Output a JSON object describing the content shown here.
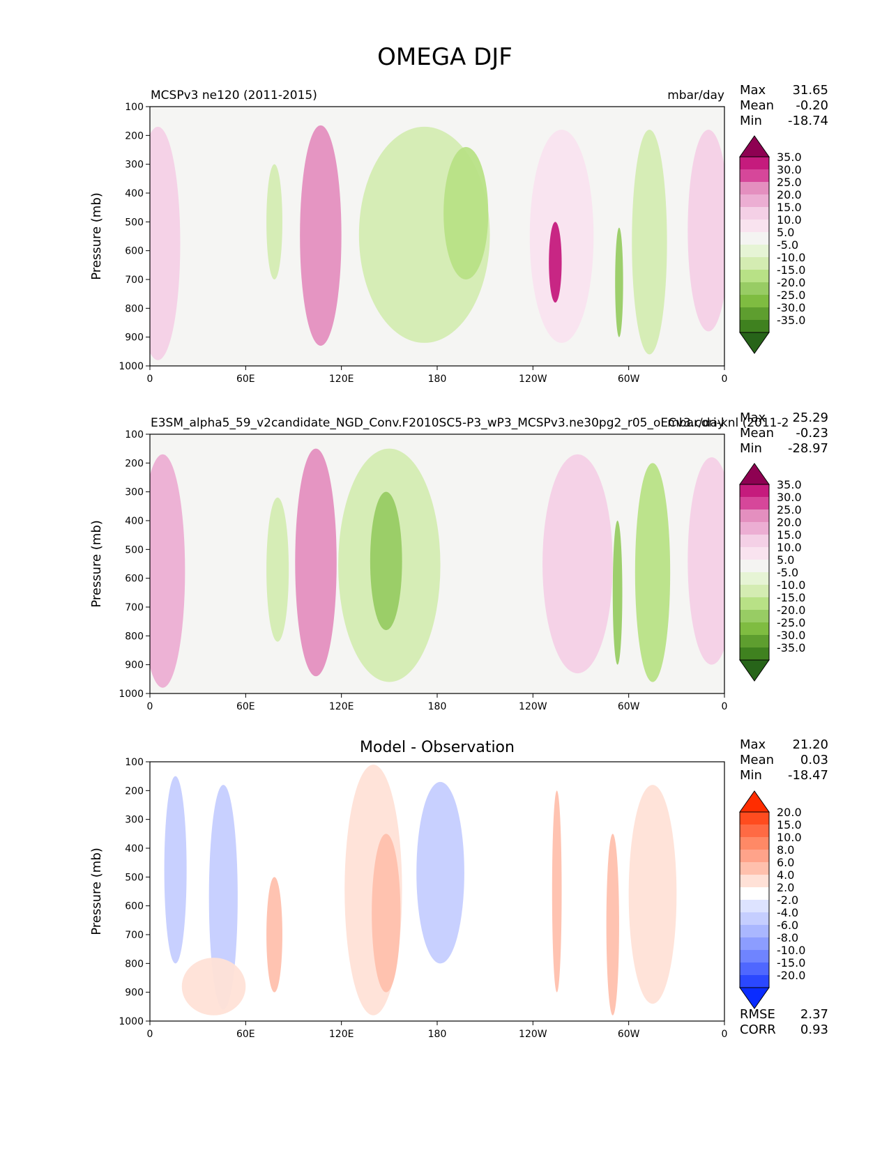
{
  "figure": {
    "title": "OMEGA DJF"
  },
  "colors": {
    "field_levels": [
      "#8e0152",
      "#c51b7d",
      "#d6479a",
      "#e48fbf",
      "#ecaed3",
      "#f4d0e6",
      "#f9e3ef",
      "#f4f4f2",
      "#e6f4d5",
      "#d4ecb2",
      "#b8e186",
      "#98cc64",
      "#7fbc41",
      "#5e9e2f",
      "#3f811f",
      "#276419"
    ],
    "field_background": "#f5f5f3",
    "diff_levels": [
      "#ff2d00",
      "#ff4c1f",
      "#ff6a44",
      "#ff8966",
      "#ffa38a",
      "#ffc0ad",
      "#ffe1d7",
      "#ffffff",
      "#dde3ff",
      "#c5ceff",
      "#aab7ff",
      "#8c9dff",
      "#6f84ff",
      "#4f67ff",
      "#2b48ff",
      "#0a2cff"
    ],
    "diff_background": "#ffffff"
  },
  "chart_data": [
    {
      "type": "heatmap",
      "title_left": "MCSPv3 ne120 (2011-2015)",
      "units": "mbar/day",
      "ylabel": "Pressure (mb)",
      "x_ticks": [
        "0",
        "60E",
        "120E",
        "180",
        "120W",
        "60W",
        "0"
      ],
      "y_ticks": [
        "100",
        "200",
        "300",
        "400",
        "500",
        "600",
        "700",
        "800",
        "900",
        "1000"
      ],
      "ylim": [
        1000,
        100
      ],
      "stats": [
        {
          "label": "Max",
          "value": "31.65"
        },
        {
          "label": "Mean",
          "value": "-0.20"
        },
        {
          "label": "Min",
          "value": "-18.74"
        }
      ],
      "colorbar_labels": [
        "35.0",
        "30.0",
        "25.0",
        "20.0",
        "15.0",
        "10.0",
        "5.0",
        "-5.0",
        "-10.0",
        "-15.0",
        "-20.0",
        "-25.0",
        "-30.0",
        "-35.0"
      ],
      "features": [
        {
          "lon": 5,
          "width": 28,
          "p_top": 170,
          "p_bot": 980,
          "value": 14
        },
        {
          "lon": 107,
          "width": 26,
          "p_top": 165,
          "p_bot": 930,
          "value": 20
        },
        {
          "lon": 172,
          "width": 82,
          "p_top": 170,
          "p_bot": 920,
          "value": -8
        },
        {
          "lon": 198,
          "width": 28,
          "p_top": 240,
          "p_bot": 700,
          "value": -13
        },
        {
          "lon": 258,
          "width": 40,
          "p_top": 180,
          "p_bot": 920,
          "value": 9
        },
        {
          "lon": 254,
          "width": 8,
          "p_top": 500,
          "p_bot": 780,
          "value": 28
        },
        {
          "lon": 294,
          "width": 5,
          "p_top": 520,
          "p_bot": 900,
          "value": -16
        },
        {
          "lon": 313,
          "width": 22,
          "p_top": 180,
          "p_bot": 960,
          "value": -8
        },
        {
          "lon": 350,
          "width": 26,
          "p_top": 180,
          "p_bot": 880,
          "value": 10
        },
        {
          "lon": 78,
          "width": 10,
          "p_top": 300,
          "p_bot": 700,
          "value": -6
        }
      ]
    },
    {
      "type": "heatmap",
      "title_left": "E3SM_alpha5_59_v2candidate_NGD_Conv.F2010SC5-P3_wP3_MCSPv3.ne30pg2_r05_oECv3.cori-knl (2011-2",
      "units": "mbar/day",
      "ylabel": "Pressure (mb)",
      "x_ticks": [
        "0",
        "60E",
        "120E",
        "180",
        "120W",
        "60W",
        "0"
      ],
      "y_ticks": [
        "100",
        "200",
        "300",
        "400",
        "500",
        "600",
        "700",
        "800",
        "900",
        "1000"
      ],
      "ylim": [
        1000,
        100
      ],
      "stats": [
        {
          "label": "Max",
          "value": "25.29"
        },
        {
          "label": "Mean",
          "value": "-0.23"
        },
        {
          "label": "Min",
          "value": "-28.97"
        }
      ],
      "colorbar_labels": [
        "35.0",
        "30.0",
        "25.0",
        "20.0",
        "15.0",
        "10.0",
        "5.0",
        "-5.0",
        "-10.0",
        "-15.0",
        "-20.0",
        "-25.0",
        "-30.0",
        "-35.0"
      ],
      "features": [
        {
          "lon": 8,
          "width": 28,
          "p_top": 170,
          "p_bot": 980,
          "value": 17
        },
        {
          "lon": 104,
          "width": 26,
          "p_top": 150,
          "p_bot": 940,
          "value": 19
        },
        {
          "lon": 150,
          "width": 64,
          "p_top": 150,
          "p_bot": 960,
          "value": -8
        },
        {
          "lon": 148,
          "width": 20,
          "p_top": 300,
          "p_bot": 780,
          "value": -14
        },
        {
          "lon": 268,
          "width": 44,
          "p_top": 170,
          "p_bot": 930,
          "value": 13
        },
        {
          "lon": 293,
          "width": 6,
          "p_top": 400,
          "p_bot": 900,
          "value": -18
        },
        {
          "lon": 315,
          "width": 22,
          "p_top": 200,
          "p_bot": 960,
          "value": -12
        },
        {
          "lon": 352,
          "width": 30,
          "p_top": 180,
          "p_bot": 900,
          "value": 13
        },
        {
          "lon": 80,
          "width": 14,
          "p_top": 320,
          "p_bot": 820,
          "value": -7
        }
      ]
    },
    {
      "type": "heatmap",
      "title_center": "Model - Observation",
      "ylabel": "Pressure (mb)",
      "x_ticks": [
        "0",
        "60E",
        "120E",
        "180",
        "120W",
        "60W",
        "0"
      ],
      "y_ticks": [
        "100",
        "200",
        "300",
        "400",
        "500",
        "600",
        "700",
        "800",
        "900",
        "1000"
      ],
      "ylim": [
        1000,
        100
      ],
      "stats": [
        {
          "label": "Max",
          "value": "21.20"
        },
        {
          "label": "Mean",
          "value": "0.03"
        },
        {
          "label": "Min",
          "value": "-18.47"
        }
      ],
      "bottom_stats": [
        {
          "label": "RMSE",
          "value": "2.37"
        },
        {
          "label": "CORR",
          "value": "0.93"
        }
      ],
      "colorbar_labels": [
        "20.0",
        "15.0",
        "10.0",
        "8.0",
        "6.0",
        "4.0",
        "2.0",
        "-2.0",
        "-4.0",
        "-6.0",
        "-8.0",
        "-10.0",
        "-15.0",
        "-20.0"
      ],
      "features": [
        {
          "lon": 46,
          "width": 18,
          "p_top": 180,
          "p_bot": 960,
          "value": -4
        },
        {
          "lon": 78,
          "width": 10,
          "p_top": 500,
          "p_bot": 900,
          "value": 6
        },
        {
          "lon": 140,
          "width": 36,
          "p_top": 110,
          "p_bot": 980,
          "value": 5
        },
        {
          "lon": 148,
          "width": 18,
          "p_top": 350,
          "p_bot": 900,
          "value": 8
        },
        {
          "lon": 182,
          "width": 30,
          "p_top": 170,
          "p_bot": 800,
          "value": -3
        },
        {
          "lon": 255,
          "width": 6,
          "p_top": 200,
          "p_bot": 900,
          "value": 7
        },
        {
          "lon": 290,
          "width": 8,
          "p_top": 350,
          "p_bot": 980,
          "value": 8
        },
        {
          "lon": 315,
          "width": 30,
          "p_top": 180,
          "p_bot": 940,
          "value": 3
        },
        {
          "lon": 16,
          "width": 14,
          "p_top": 150,
          "p_bot": 800,
          "value": -3
        },
        {
          "lon": 40,
          "width": 40,
          "p_top": 780,
          "p_bot": 980,
          "value": 3
        }
      ]
    }
  ]
}
